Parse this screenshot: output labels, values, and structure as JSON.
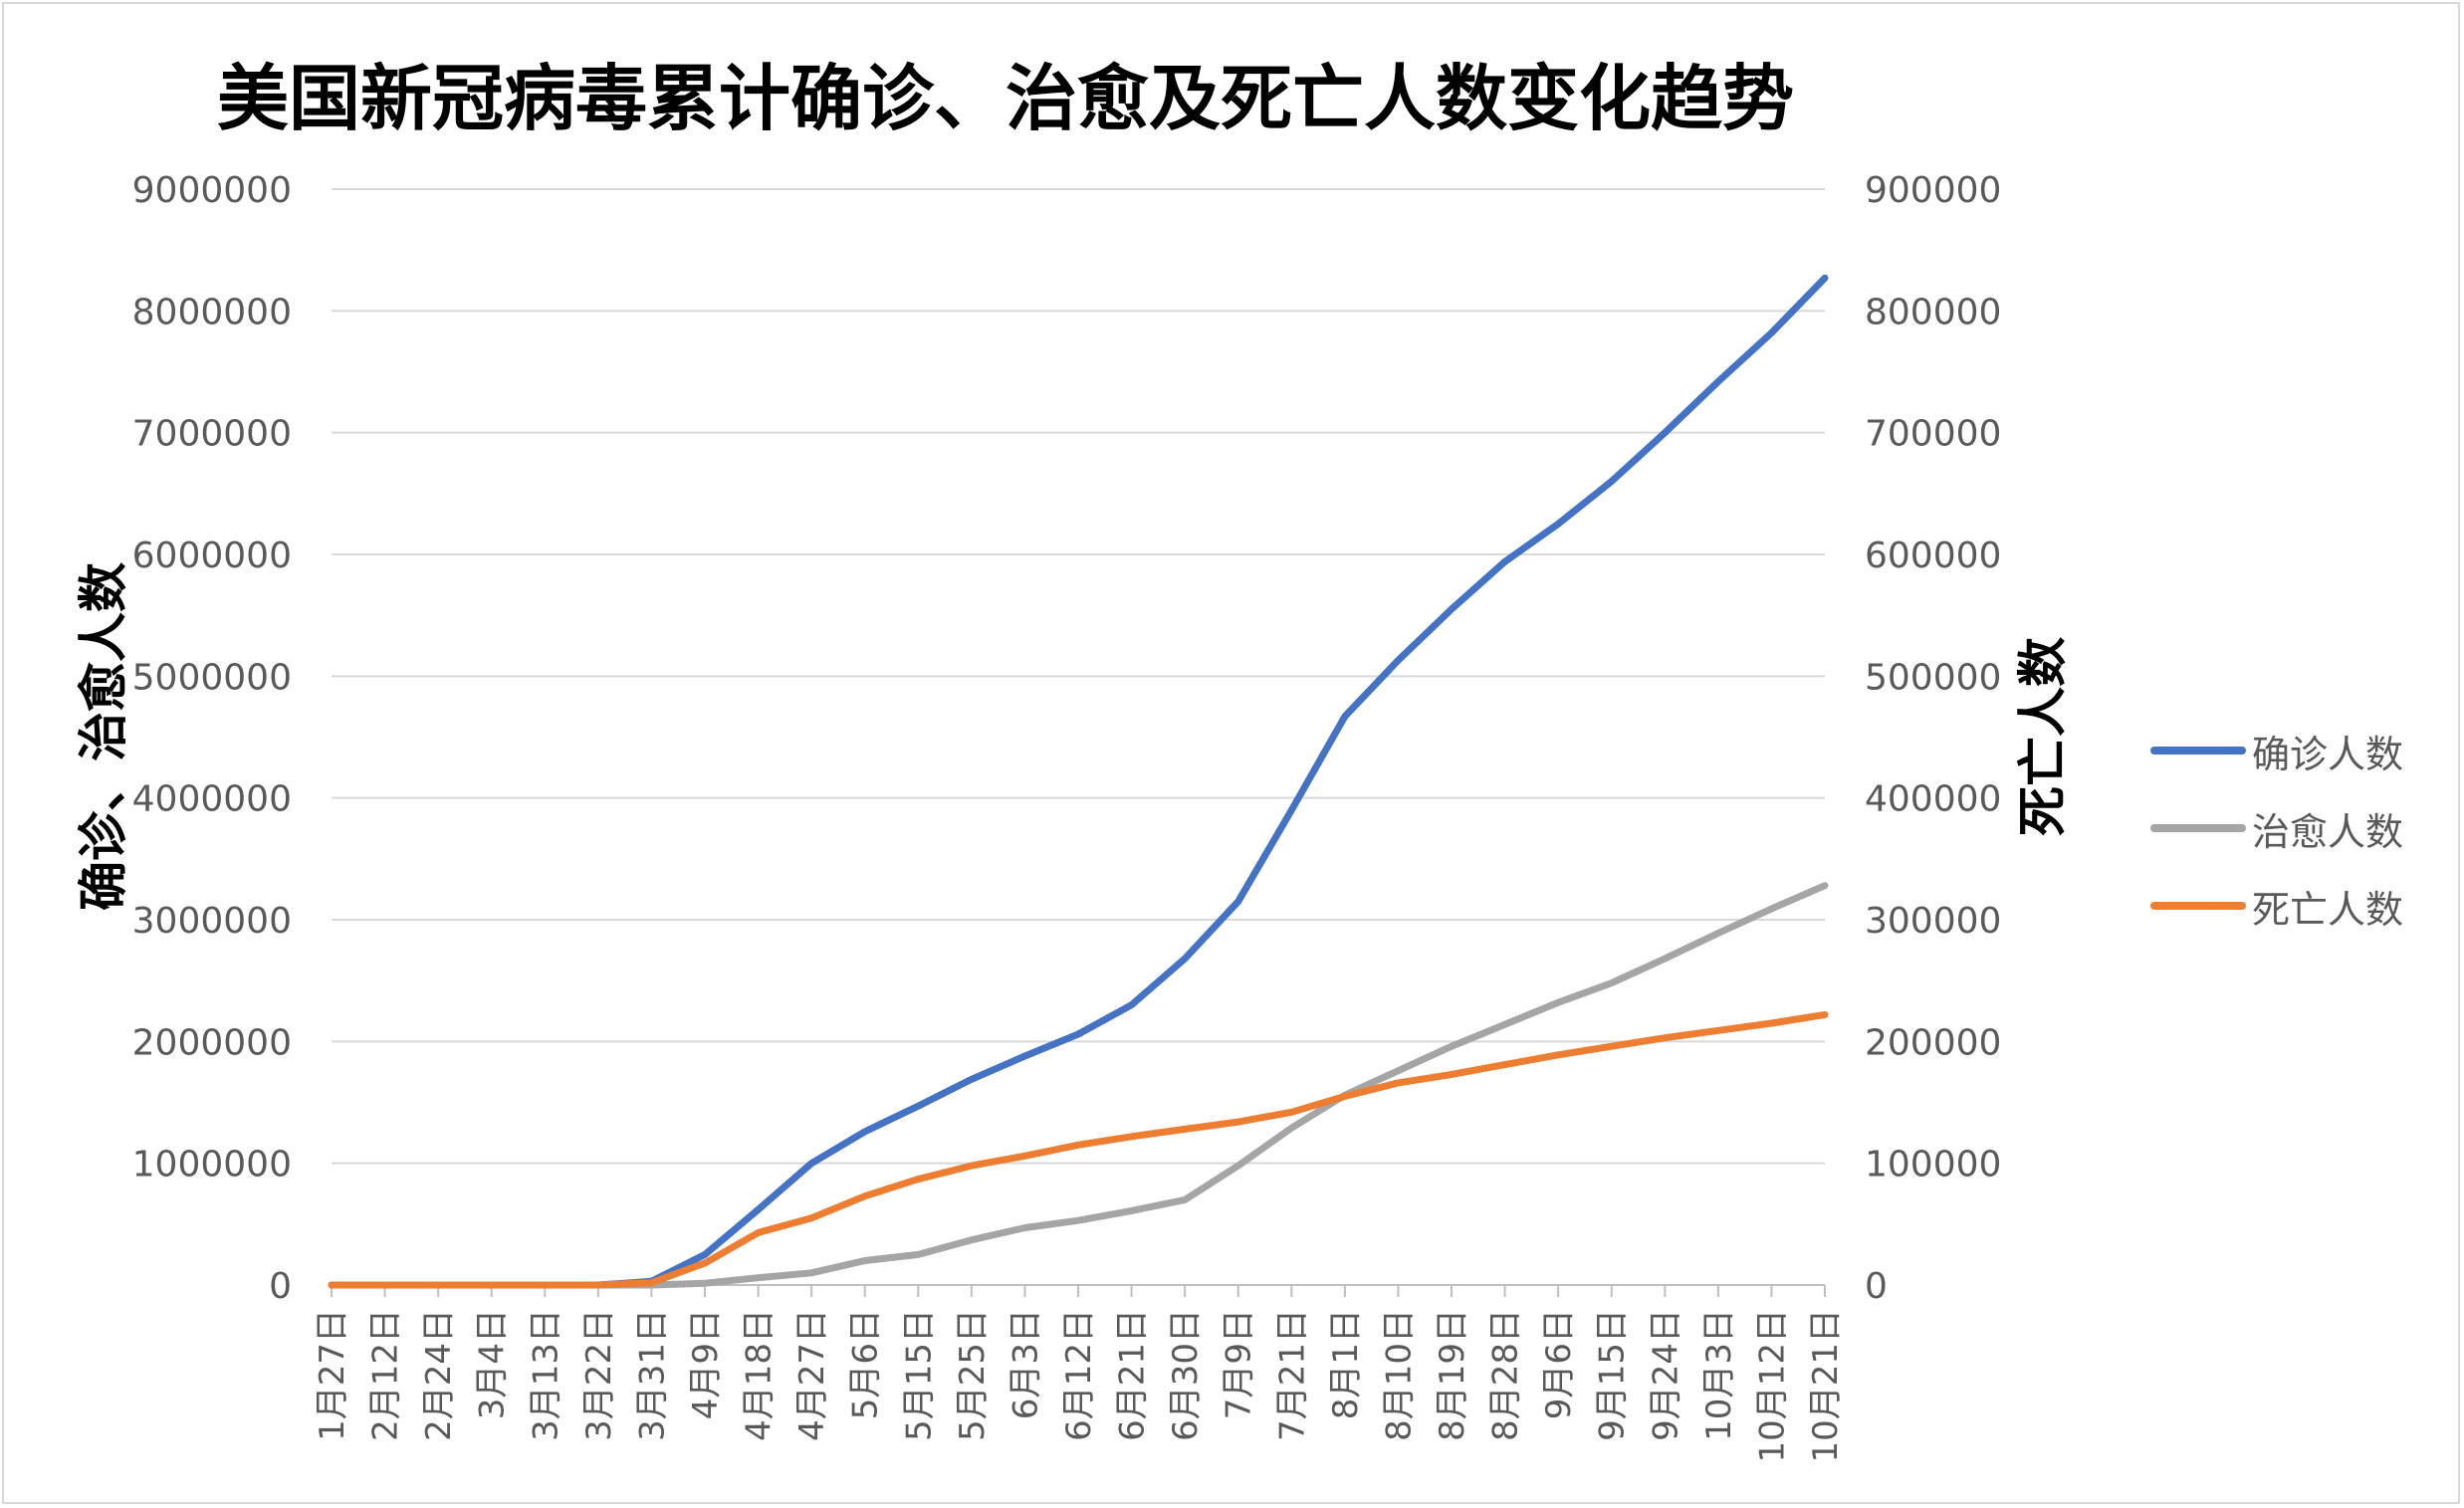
{
  "chart_data": {
    "type": "line",
    "title": "美国新冠病毒累计确诊、治愈及死亡人数变化趋势",
    "y_left_label": "确诊、治愈人数",
    "y_right_label": "死亡人数",
    "y_left_range": [
      0,
      9000000
    ],
    "y_right_range": [
      0,
      900000
    ],
    "y_left_ticks": [
      "0",
      "1000000",
      "2000000",
      "3000000",
      "4000000",
      "5000000",
      "6000000",
      "7000000",
      "8000000",
      "9000000"
    ],
    "y_right_ticks": [
      "0",
      "100000",
      "200000",
      "300000",
      "400000",
      "500000",
      "600000",
      "700000",
      "800000",
      "900000"
    ],
    "x_tick_labels": [
      "1月27日",
      "2月12日",
      "2月24日",
      "3月4日",
      "3月13日",
      "3月22日",
      "3月31日",
      "4月9日",
      "4月18日",
      "4月27日",
      "5月6日",
      "5月15日",
      "5月25日",
      "6月3日",
      "6月12日",
      "6月21日",
      "6月30日",
      "7月9日",
      "7月21日",
      "8月1日",
      "8月10日",
      "8月19日",
      "8月28日",
      "9月6日",
      "9月15日",
      "9月24日",
      "10月3日",
      "10月12日",
      "10月21日"
    ],
    "grid": true,
    "legend_position": "right",
    "series": [
      {
        "name": "确诊人数",
        "axis": "left",
        "color": "#4472C4",
        "values": [
          0,
          0,
          0,
          0,
          0,
          100,
          30000,
          250000,
          620000,
          1000000,
          1260000,
          1470000,
          1690000,
          1880000,
          2060000,
          2300000,
          2680000,
          3150000,
          3900000,
          4670000,
          5130000,
          5550000,
          5940000,
          6250000,
          6600000,
          7000000,
          7420000,
          7820000,
          8270000
        ]
      },
      {
        "name": "治愈人数",
        "axis": "left",
        "color": "#A5A5A5",
        "values": [
          0,
          0,
          0,
          0,
          0,
          0,
          0,
          15000,
          60000,
          100000,
          200000,
          250000,
          370000,
          470000,
          530000,
          610000,
          700000,
          980000,
          1290000,
          1560000,
          1760000,
          1960000,
          2140000,
          2320000,
          2480000,
          2680000,
          2890000,
          3090000,
          3280000
        ]
      },
      {
        "name": "死亡人数",
        "axis": "right",
        "color": "#ED7D31",
        "values": [
          0,
          0,
          0,
          0,
          0,
          0,
          2000,
          18000,
          43000,
          55000,
          73000,
          87000,
          98000,
          106000,
          115000,
          122000,
          128000,
          134000,
          142000,
          155000,
          166000,
          173000,
          181000,
          189000,
          196000,
          203000,
          209000,
          215000,
          222000
        ]
      }
    ]
  }
}
